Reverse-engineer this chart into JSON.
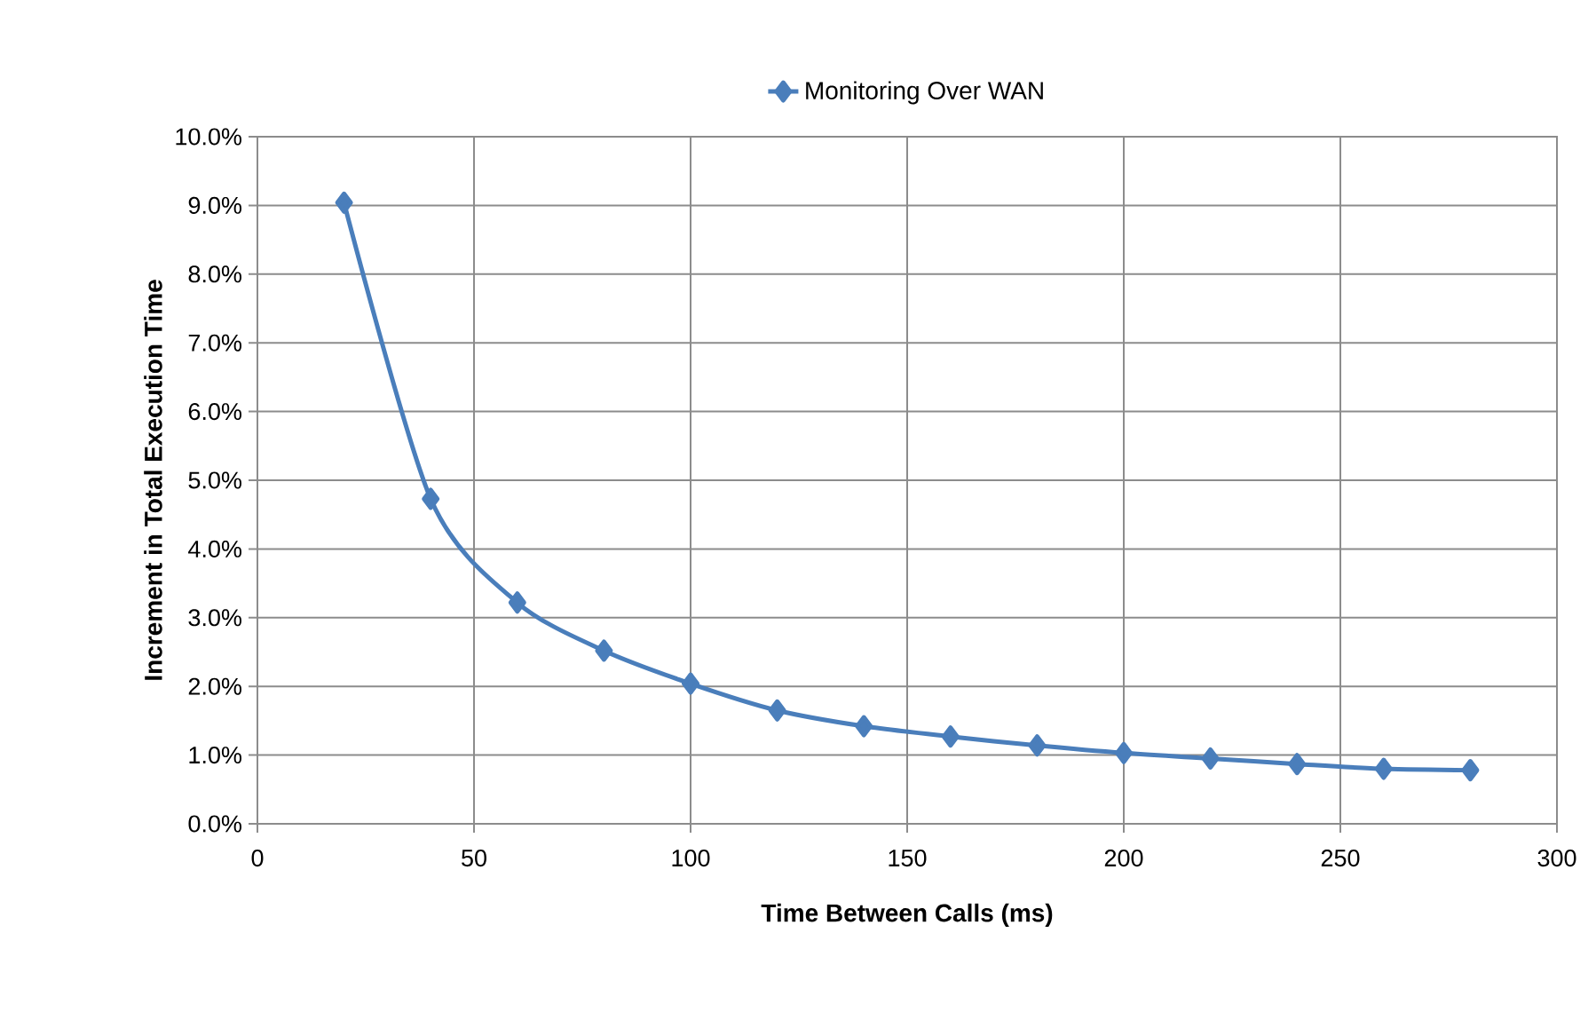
{
  "chart_data": {
    "type": "line",
    "xlabel": "Time Between Calls (ms)",
    "ylabel": "Increment in Total Execution Time",
    "x": [
      20,
      40,
      60,
      80,
      100,
      120,
      140,
      160,
      180,
      200,
      220,
      240,
      260,
      280
    ],
    "series": [
      {
        "name": "Monitoring Over WAN",
        "color": "#4a7ebb",
        "values": [
          9.04,
          4.73,
          3.22,
          2.52,
          2.04,
          1.65,
          1.42,
          1.27,
          1.14,
          1.03,
          0.95,
          0.87,
          0.8,
          0.78
        ]
      }
    ],
    "xlim": [
      0,
      300
    ],
    "xticks": [
      0,
      50,
      100,
      150,
      200,
      250,
      300
    ],
    "ylim": [
      0,
      10
    ],
    "yticks": [
      {
        "value": 0,
        "label": "0.0%"
      },
      {
        "value": 1,
        "label": "1.0%"
      },
      {
        "value": 2,
        "label": "2.0%"
      },
      {
        "value": 3,
        "label": "3.0%"
      },
      {
        "value": 4,
        "label": "4.0%"
      },
      {
        "value": 5,
        "label": "5.0%"
      },
      {
        "value": 6,
        "label": "6.0%"
      },
      {
        "value": 7,
        "label": "7.0%"
      },
      {
        "value": 8,
        "label": "8.0%"
      },
      {
        "value": 9,
        "label": "9.0%"
      },
      {
        "value": 10,
        "label": "10.0%"
      }
    ],
    "grid": true,
    "legend": "top",
    "marker": "diamond",
    "line_style": "solid"
  }
}
